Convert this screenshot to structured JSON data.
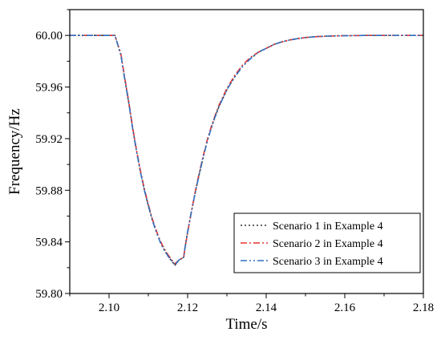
{
  "chart_data": {
    "type": "line",
    "xlabel": "Time/s",
    "ylabel": "Frequency/Hz",
    "xlim": [
      2.09,
      2.18
    ],
    "ylim": [
      59.8,
      60.02
    ],
    "x_ticks": [
      "2.10",
      "2.12",
      "2.14",
      "2.16",
      "2.18"
    ],
    "y_ticks": [
      "59.80",
      "59.84",
      "59.88",
      "59.92",
      "59.96",
      "60.00"
    ],
    "legend_position": "bottom-right",
    "grid": false,
    "series": [
      {
        "name": "Scenario 1 in Example 4",
        "color": "#333333",
        "dash": "dotted",
        "x": [
          2.09,
          2.1015,
          2.102,
          2.103,
          2.104,
          2.105,
          2.106,
          2.107,
          2.108,
          2.109,
          2.11,
          2.111,
          2.112,
          2.113,
          2.114,
          2.115,
          2.116,
          2.1168,
          2.1178,
          2.119,
          2.1193,
          2.12,
          2.121,
          2.122,
          2.123,
          2.124,
          2.125,
          2.126,
          2.127,
          2.128,
          2.13,
          2.132,
          2.134,
          2.136,
          2.138,
          2.14,
          2.142,
          2.144,
          2.146,
          2.148,
          2.15,
          2.153,
          2.156,
          2.16,
          2.165,
          2.17,
          2.175,
          2.18
        ],
        "y": [
          60.0,
          60.0,
          59.995,
          59.985,
          59.966,
          59.948,
          59.928,
          59.91,
          59.894,
          59.88,
          59.868,
          59.857,
          59.848,
          59.84,
          59.834,
          59.829,
          59.825,
          59.822,
          59.826,
          59.828,
          59.835,
          59.848,
          59.864,
          59.879,
          59.893,
          59.906,
          59.918,
          59.928,
          59.937,
          59.945,
          59.958,
          59.968,
          59.976,
          59.982,
          59.987,
          59.99,
          59.993,
          59.995,
          59.9965,
          59.9975,
          59.9984,
          59.9991,
          59.9995,
          59.9998,
          60.0,
          60.0,
          60.0,
          60.0
        ]
      },
      {
        "name": "Scenario 2 in Example 4",
        "color": "#e8322d",
        "dash": "dashdot",
        "x": [
          2.09,
          2.1015,
          2.102,
          2.103,
          2.104,
          2.105,
          2.106,
          2.107,
          2.108,
          2.109,
          2.11,
          2.111,
          2.112,
          2.113,
          2.114,
          2.115,
          2.116,
          2.1168,
          2.1178,
          2.119,
          2.1193,
          2.12,
          2.121,
          2.122,
          2.123,
          2.124,
          2.125,
          2.126,
          2.127,
          2.128,
          2.13,
          2.132,
          2.134,
          2.136,
          2.138,
          2.14,
          2.142,
          2.144,
          2.146,
          2.148,
          2.15,
          2.153,
          2.156,
          2.16,
          2.165,
          2.17,
          2.175,
          2.18
        ],
        "y": [
          60.0,
          60.0,
          59.995,
          59.986,
          59.967,
          59.949,
          59.929,
          59.911,
          59.895,
          59.881,
          59.869,
          59.858,
          59.849,
          59.841,
          59.835,
          59.83,
          59.826,
          59.823,
          59.826,
          59.828,
          59.835,
          59.847,
          59.864,
          59.88,
          59.894,
          59.907,
          59.919,
          59.929,
          59.938,
          59.946,
          59.959,
          59.969,
          59.977,
          59.983,
          59.987,
          59.99,
          59.993,
          59.995,
          59.9965,
          59.9975,
          59.9984,
          59.9991,
          59.9995,
          59.9998,
          60.0,
          60.0,
          60.0,
          60.0
        ]
      },
      {
        "name": "Scenario 3 in Example 4",
        "color": "#2f6fbf",
        "dash": "dashdotdot",
        "x": [
          2.09,
          2.1015,
          2.102,
          2.103,
          2.104,
          2.105,
          2.106,
          2.107,
          2.108,
          2.109,
          2.11,
          2.111,
          2.112,
          2.113,
          2.114,
          2.115,
          2.116,
          2.1168,
          2.1178,
          2.119,
          2.1193,
          2.12,
          2.121,
          2.122,
          2.123,
          2.124,
          2.125,
          2.126,
          2.127,
          2.128,
          2.13,
          2.132,
          2.134,
          2.136,
          2.138,
          2.14,
          2.142,
          2.144,
          2.146,
          2.148,
          2.15,
          2.153,
          2.156,
          2.16,
          2.165,
          2.17,
          2.175,
          2.18
        ],
        "y": [
          60.0,
          60.0,
          59.995,
          59.985,
          59.966,
          59.948,
          59.928,
          59.91,
          59.894,
          59.88,
          59.868,
          59.857,
          59.848,
          59.84,
          59.834,
          59.829,
          59.825,
          59.822,
          59.826,
          59.828,
          59.835,
          59.848,
          59.864,
          59.879,
          59.893,
          59.906,
          59.918,
          59.928,
          59.937,
          59.945,
          59.958,
          59.968,
          59.976,
          59.982,
          59.987,
          59.99,
          59.993,
          59.995,
          59.9965,
          59.9975,
          59.9984,
          59.9991,
          59.9995,
          59.9998,
          60.0,
          60.0,
          60.0,
          60.0
        ]
      }
    ]
  }
}
